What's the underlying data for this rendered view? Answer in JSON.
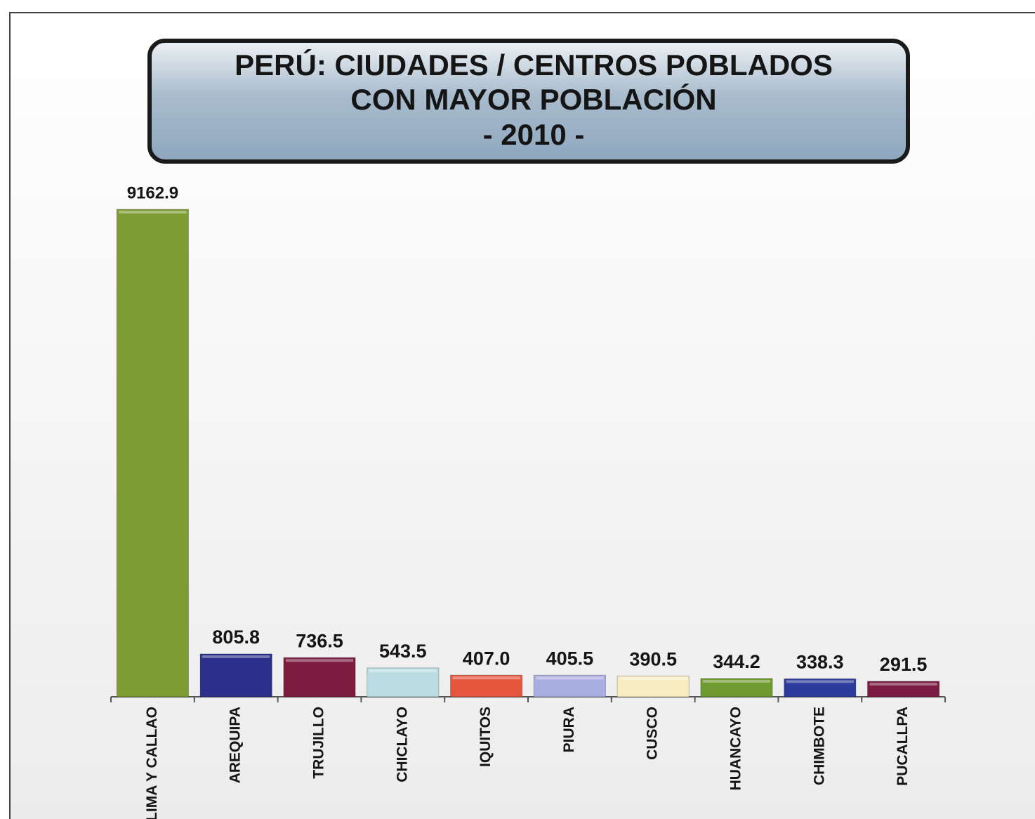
{
  "chart_data": {
    "type": "bar",
    "title": [
      "PERÚ:  CIUDADES / CENTROS POBLADOS",
      "CON MAYOR POBLACIÓN",
      "- 2010 -"
    ],
    "categories": [
      "LIMA Y CALLAO",
      "AREQUIPA",
      "TRUJILLO",
      "CHICLAYO",
      "IQUITOS",
      "PIURA",
      "CUSCO",
      "HUANCAYO",
      "CHIMBOTE",
      "PUCALLPA"
    ],
    "values": [
      9162.9,
      805.8,
      736.5,
      543.5,
      407.0,
      405.5,
      390.5,
      344.2,
      338.3,
      291.5
    ],
    "value_labels": [
      "9162.9",
      "805.8",
      "736.5",
      "543.5",
      "407.0",
      "405.5",
      "390.5",
      "344.2",
      "338.3",
      "291.5"
    ],
    "colors": [
      "#7d9c32",
      "#2c2f8c",
      "#7c1c3e",
      "#b9dde1",
      "#e6563e",
      "#a9aee2",
      "#f8ecc2",
      "#6f9a30",
      "#2b3b9c",
      "#7b1b42"
    ]
  }
}
